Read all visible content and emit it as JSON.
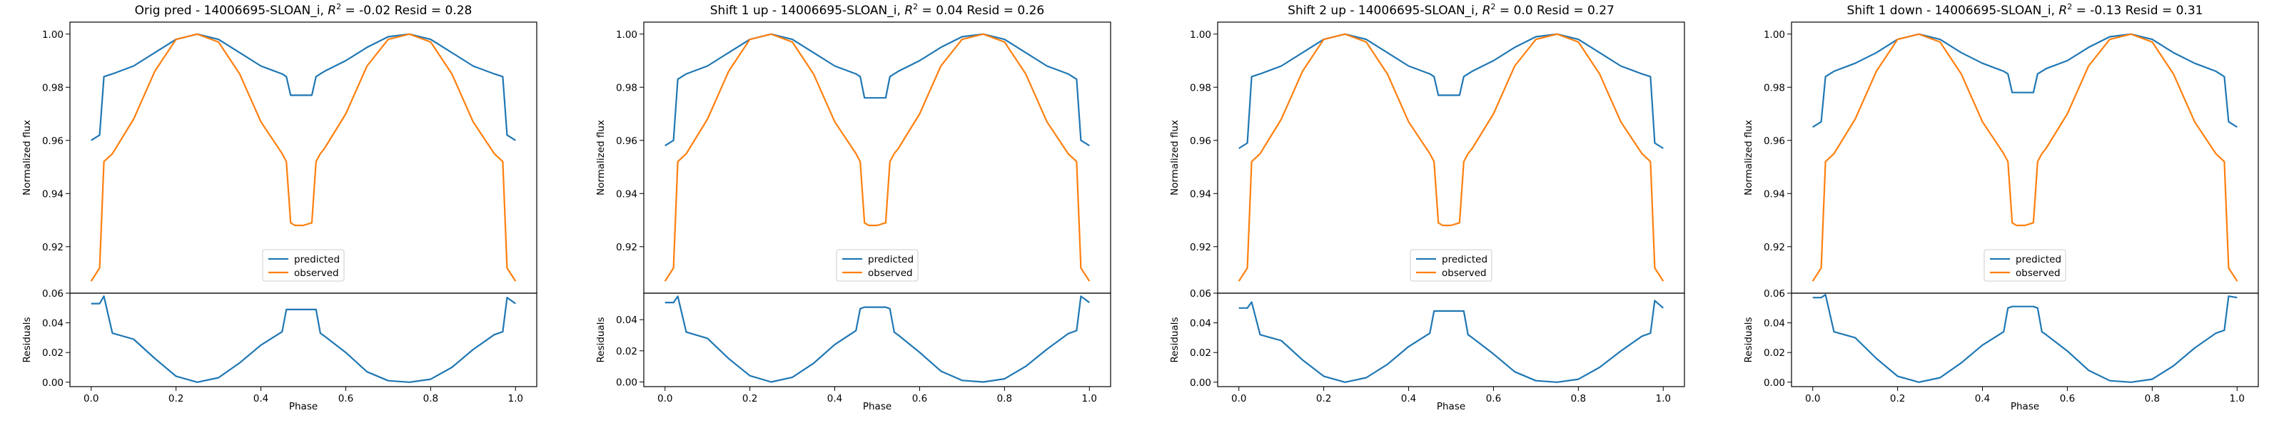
{
  "chart_data": [
    {
      "type": "line",
      "title_prefix": "Orig pred - 14006695-SLOAN_i, ",
      "r2_value": "-0.02",
      "title_suffix": " Resid = 0.28",
      "xlabel": "Phase",
      "ylabel_top": "Normalized flux",
      "ylabel_bottom": "Residuals",
      "xlim": [
        -0.05,
        1.05
      ],
      "ylim_top": [
        0.9025,
        1.0045
      ],
      "ylim_bottom": [
        -0.003,
        0.06
      ],
      "x_ticks": [
        "0.0",
        "0.2",
        "0.4",
        "0.6",
        "0.8",
        "1.0"
      ],
      "y_ticks_top": [
        "0.92",
        "0.94",
        "0.96",
        "0.98",
        "1.00"
      ],
      "y_ticks_bottom": [
        "0.00",
        "0.02",
        "0.04",
        "0.06"
      ],
      "legend": [
        "predicted",
        "observed"
      ],
      "legend_position": "lower center",
      "x": [
        0.0,
        0.02,
        0.03,
        0.05,
        0.1,
        0.15,
        0.2,
        0.25,
        0.3,
        0.35,
        0.4,
        0.45,
        0.46,
        0.47,
        0.48,
        0.5,
        0.52,
        0.53,
        0.54,
        0.55,
        0.6,
        0.65,
        0.7,
        0.75,
        0.8,
        0.85,
        0.9,
        0.95,
        0.97,
        0.98,
        1.0
      ],
      "series": [
        {
          "name": "predicted",
          "color": "#1f77b4",
          "values": [
            0.96,
            0.962,
            0.984,
            0.985,
            0.988,
            0.993,
            0.998,
            1.0,
            0.998,
            0.993,
            0.988,
            0.985,
            0.984,
            0.977,
            0.977,
            0.977,
            0.977,
            0.984,
            0.985,
            0.986,
            0.99,
            0.995,
            0.999,
            1.0,
            0.998,
            0.993,
            0.988,
            0.985,
            0.984,
            0.962,
            0.96
          ]
        },
        {
          "name": "observed",
          "color": "#ff7f0e",
          "values": [
            0.907,
            0.912,
            0.952,
            0.955,
            0.968,
            0.986,
            0.998,
            1.0,
            0.997,
            0.985,
            0.967,
            0.955,
            0.952,
            0.929,
            0.928,
            0.928,
            0.929,
            0.952,
            0.955,
            0.957,
            0.97,
            0.988,
            0.998,
            1.0,
            0.997,
            0.985,
            0.967,
            0.955,
            0.952,
            0.912,
            0.907
          ]
        }
      ],
      "residuals": [
        0.053,
        0.053,
        0.058,
        0.033,
        0.029,
        0.016,
        0.004,
        0.0,
        0.003,
        0.013,
        0.025,
        0.034,
        0.049,
        0.049,
        0.049,
        0.049,
        0.049,
        0.049,
        0.033,
        0.031,
        0.02,
        0.007,
        0.001,
        0.0,
        0.002,
        0.01,
        0.022,
        0.032,
        0.034,
        0.057,
        0.053
      ]
    },
    {
      "type": "line",
      "title_prefix": "Shift 1 up - 14006695-SLOAN_i, ",
      "r2_value": "0.04",
      "title_suffix": " Resid = 0.26",
      "xlabel": "Phase",
      "ylabel_top": "Normalized flux",
      "ylabel_bottom": "Residuals",
      "xlim": [
        -0.05,
        1.05
      ],
      "ylim_top": [
        0.9025,
        1.0045
      ],
      "ylim_bottom": [
        -0.003,
        0.057
      ],
      "x_ticks": [
        "0.0",
        "0.2",
        "0.4",
        "0.6",
        "0.8",
        "1.0"
      ],
      "y_ticks_top": [
        "0.92",
        "0.94",
        "0.96",
        "0.98",
        "1.00"
      ],
      "y_ticks_bottom": [
        "0.00",
        "0.02",
        "0.04"
      ],
      "legend": [
        "predicted",
        "observed"
      ],
      "legend_position": "lower center",
      "x": [
        0.0,
        0.02,
        0.03,
        0.05,
        0.1,
        0.15,
        0.2,
        0.25,
        0.3,
        0.35,
        0.4,
        0.45,
        0.46,
        0.47,
        0.48,
        0.5,
        0.52,
        0.53,
        0.54,
        0.55,
        0.6,
        0.65,
        0.7,
        0.75,
        0.8,
        0.85,
        0.9,
        0.95,
        0.97,
        0.98,
        1.0
      ],
      "series": [
        {
          "name": "predicted",
          "color": "#1f77b4",
          "values": [
            0.958,
            0.96,
            0.983,
            0.985,
            0.988,
            0.993,
            0.998,
            1.0,
            0.998,
            0.993,
            0.988,
            0.985,
            0.984,
            0.976,
            0.976,
            0.976,
            0.976,
            0.984,
            0.985,
            0.986,
            0.99,
            0.995,
            0.999,
            1.0,
            0.998,
            0.993,
            0.988,
            0.985,
            0.983,
            0.96,
            0.958
          ]
        },
        {
          "name": "observed",
          "color": "#ff7f0e",
          "values": [
            0.907,
            0.912,
            0.952,
            0.955,
            0.968,
            0.986,
            0.998,
            1.0,
            0.997,
            0.985,
            0.967,
            0.955,
            0.952,
            0.929,
            0.928,
            0.928,
            0.929,
            0.952,
            0.955,
            0.957,
            0.97,
            0.988,
            0.998,
            1.0,
            0.997,
            0.985,
            0.967,
            0.955,
            0.952,
            0.912,
            0.907
          ]
        }
      ],
      "residuals": [
        0.051,
        0.051,
        0.055,
        0.032,
        0.028,
        0.015,
        0.004,
        0.0,
        0.003,
        0.012,
        0.024,
        0.033,
        0.047,
        0.048,
        0.048,
        0.048,
        0.048,
        0.047,
        0.032,
        0.03,
        0.019,
        0.007,
        0.001,
        0.0,
        0.002,
        0.01,
        0.021,
        0.031,
        0.033,
        0.055,
        0.051
      ]
    },
    {
      "type": "line",
      "title_prefix": "Shift 2 up - 14006695-SLOAN_i, ",
      "r2_value": "0.0",
      "title_suffix": " Resid = 0.27",
      "xlabel": "Phase",
      "ylabel_top": "Normalized flux",
      "ylabel_bottom": "Residuals",
      "xlim": [
        -0.05,
        1.05
      ],
      "ylim_top": [
        0.9025,
        1.0045
      ],
      "ylim_bottom": [
        -0.003,
        0.06
      ],
      "x_ticks": [
        "0.0",
        "0.2",
        "0.4",
        "0.6",
        "0.8",
        "1.0"
      ],
      "y_ticks_top": [
        "0.92",
        "0.94",
        "0.96",
        "0.98",
        "1.00"
      ],
      "y_ticks_bottom": [
        "0.00",
        "0.02",
        "0.04",
        "0.06"
      ],
      "legend": [
        "predicted",
        "observed"
      ],
      "legend_position": "lower center",
      "x": [
        0.0,
        0.02,
        0.03,
        0.05,
        0.1,
        0.15,
        0.2,
        0.25,
        0.3,
        0.35,
        0.4,
        0.45,
        0.46,
        0.47,
        0.48,
        0.5,
        0.52,
        0.53,
        0.54,
        0.55,
        0.6,
        0.65,
        0.7,
        0.75,
        0.8,
        0.85,
        0.9,
        0.95,
        0.97,
        0.98,
        1.0
      ],
      "series": [
        {
          "name": "predicted",
          "color": "#1f77b4",
          "values": [
            0.957,
            0.959,
            0.984,
            0.985,
            0.988,
            0.993,
            0.998,
            1.0,
            0.998,
            0.993,
            0.988,
            0.985,
            0.984,
            0.977,
            0.977,
            0.977,
            0.977,
            0.984,
            0.985,
            0.986,
            0.99,
            0.995,
            0.999,
            1.0,
            0.998,
            0.993,
            0.988,
            0.985,
            0.984,
            0.959,
            0.957
          ]
        },
        {
          "name": "observed",
          "color": "#ff7f0e",
          "values": [
            0.907,
            0.912,
            0.952,
            0.955,
            0.968,
            0.986,
            0.998,
            1.0,
            0.997,
            0.985,
            0.967,
            0.955,
            0.952,
            0.929,
            0.928,
            0.928,
            0.929,
            0.952,
            0.955,
            0.957,
            0.97,
            0.988,
            0.998,
            1.0,
            0.997,
            0.985,
            0.967,
            0.955,
            0.952,
            0.912,
            0.907
          ]
        }
      ],
      "residuals": [
        0.05,
        0.05,
        0.054,
        0.032,
        0.028,
        0.015,
        0.004,
        0.0,
        0.003,
        0.012,
        0.024,
        0.033,
        0.048,
        0.048,
        0.048,
        0.048,
        0.048,
        0.048,
        0.032,
        0.03,
        0.019,
        0.007,
        0.001,
        0.0,
        0.002,
        0.01,
        0.021,
        0.031,
        0.033,
        0.055,
        0.05
      ]
    },
    {
      "type": "line",
      "title_prefix": "Shift 1 down - 14006695-SLOAN_i, ",
      "r2_value": "-0.13",
      "title_suffix": " Resid = 0.31",
      "xlabel": "Phase",
      "ylabel_top": "Normalized flux",
      "ylabel_bottom": "Residuals",
      "xlim": [
        -0.05,
        1.05
      ],
      "ylim_top": [
        0.9025,
        1.0045
      ],
      "ylim_bottom": [
        -0.003,
        0.06
      ],
      "x_ticks": [
        "0.0",
        "0.2",
        "0.4",
        "0.6",
        "0.8",
        "1.0"
      ],
      "y_ticks_top": [
        "0.92",
        "0.94",
        "0.96",
        "0.98",
        "1.00"
      ],
      "y_ticks_bottom": [
        "0.00",
        "0.02",
        "0.04",
        "0.06"
      ],
      "legend": [
        "predicted",
        "observed"
      ],
      "legend_position": "lower center",
      "x": [
        0.0,
        0.02,
        0.03,
        0.05,
        0.1,
        0.15,
        0.2,
        0.25,
        0.3,
        0.35,
        0.4,
        0.45,
        0.46,
        0.47,
        0.48,
        0.5,
        0.52,
        0.53,
        0.54,
        0.55,
        0.6,
        0.65,
        0.7,
        0.75,
        0.8,
        0.85,
        0.9,
        0.95,
        0.97,
        0.98,
        1.0
      ],
      "series": [
        {
          "name": "predicted",
          "color": "#1f77b4",
          "values": [
            0.965,
            0.967,
            0.984,
            0.986,
            0.989,
            0.993,
            0.998,
            1.0,
            0.998,
            0.993,
            0.989,
            0.986,
            0.985,
            0.978,
            0.978,
            0.978,
            0.978,
            0.985,
            0.986,
            0.987,
            0.99,
            0.995,
            0.999,
            1.0,
            0.998,
            0.993,
            0.989,
            0.986,
            0.984,
            0.967,
            0.965
          ]
        },
        {
          "name": "observed",
          "color": "#ff7f0e",
          "values": [
            0.907,
            0.912,
            0.952,
            0.955,
            0.968,
            0.986,
            0.998,
            1.0,
            0.997,
            0.985,
            0.967,
            0.955,
            0.952,
            0.929,
            0.928,
            0.928,
            0.929,
            0.952,
            0.955,
            0.957,
            0.97,
            0.988,
            0.998,
            1.0,
            0.997,
            0.985,
            0.967,
            0.955,
            0.952,
            0.912,
            0.907
          ]
        }
      ],
      "residuals": [
        0.057,
        0.057,
        0.059,
        0.034,
        0.03,
        0.016,
        0.004,
        0.0,
        0.003,
        0.013,
        0.025,
        0.034,
        0.05,
        0.051,
        0.051,
        0.051,
        0.051,
        0.05,
        0.034,
        0.032,
        0.021,
        0.008,
        0.001,
        0.0,
        0.002,
        0.011,
        0.023,
        0.033,
        0.035,
        0.058,
        0.057
      ]
    }
  ]
}
